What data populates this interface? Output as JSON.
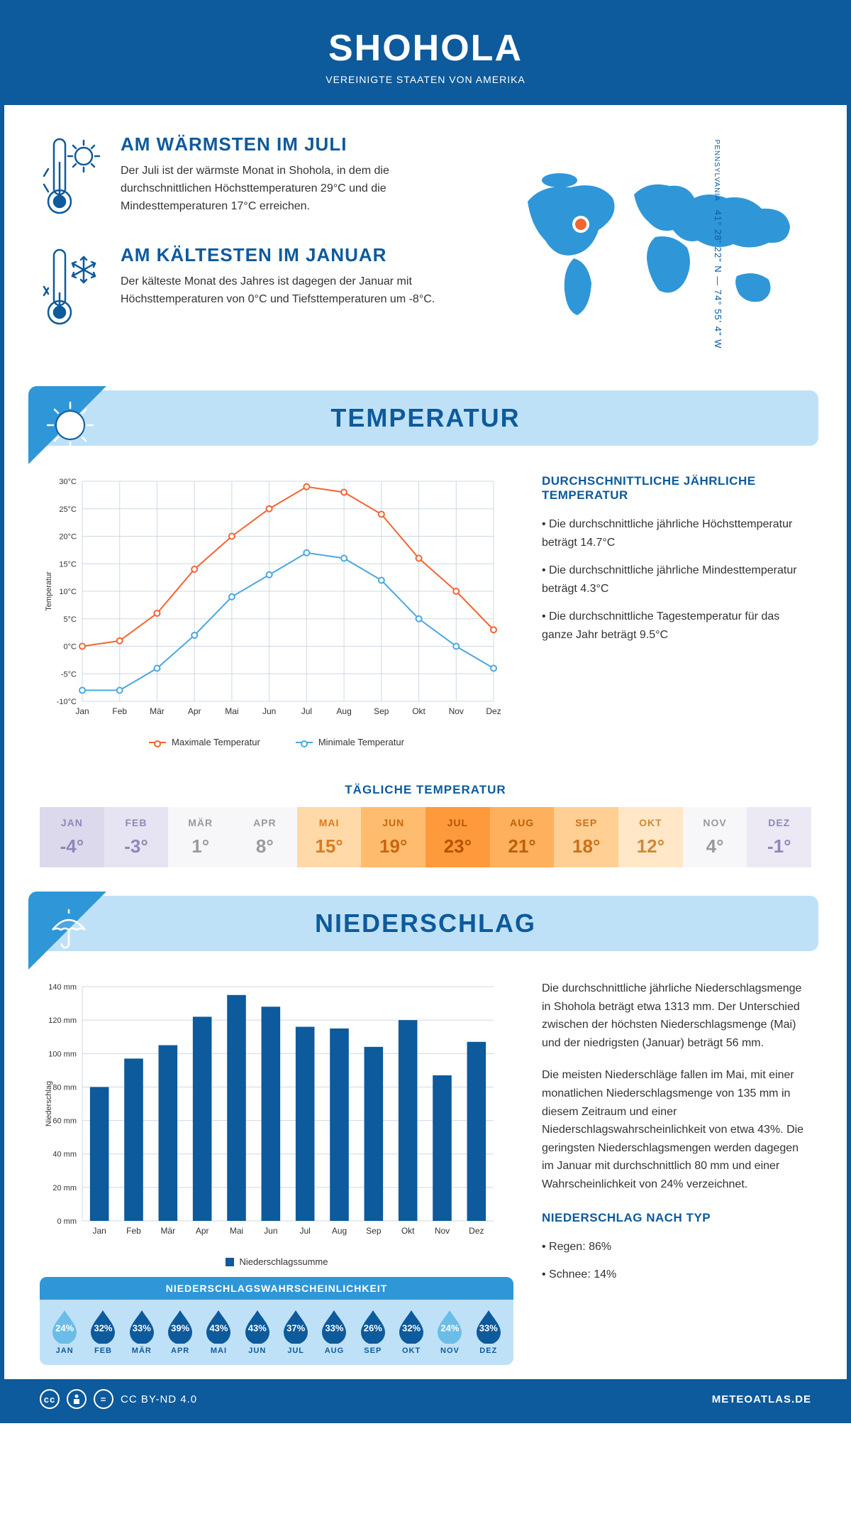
{
  "header": {
    "title": "SHOHOLA",
    "subtitle": "VEREINIGTE STAATEN VON AMERIKA"
  },
  "facts": {
    "warm": {
      "title": "AM WÄRMSTEN IM JULI",
      "text": "Der Juli ist der wärmste Monat in Shohola, in dem die durchschnittlichen Höchsttemperaturen 29°C und die Mindesttemperaturen 17°C erreichen."
    },
    "cold": {
      "title": "AM KÄLTESTEN IM JANUAR",
      "text": "Der kälteste Monat des Jahres ist dagegen der Januar mit Höchsttemperaturen von 0°C und Tiefsttemperaturen um -8°C."
    }
  },
  "coords": "41° 28' 22\" N — 74° 55' 4\" W",
  "region": "PENNSYLVANIA",
  "months": [
    "Jan",
    "Feb",
    "Mär",
    "Apr",
    "Mai",
    "Jun",
    "Jul",
    "Aug",
    "Sep",
    "Okt",
    "Nov",
    "Dez"
  ],
  "months_upper": [
    "JAN",
    "FEB",
    "MÄR",
    "APR",
    "MAI",
    "JUN",
    "JUL",
    "AUG",
    "SEP",
    "OKT",
    "NOV",
    "DEZ"
  ],
  "temperature": {
    "section_title": "TEMPERATUR",
    "chart": {
      "type": "line",
      "ylabel": "Temperatur",
      "ylim": [
        -10,
        30
      ],
      "ytick_step": 5,
      "y_unit": "°C",
      "grid_color": "#cfd8e6",
      "background": "#ffffff",
      "series": [
        {
          "name": "Maximale Temperatur",
          "color": "#f26531",
          "values": [
            0,
            1,
            6,
            14,
            20,
            25,
            29,
            28,
            24,
            16,
            10,
            3
          ]
        },
        {
          "name": "Minimale Temperatur",
          "color": "#4aa8e0",
          "values": [
            -8,
            -8,
            -4,
            2,
            9,
            13,
            17,
            16,
            12,
            5,
            0,
            -4
          ]
        }
      ],
      "marker": "circle",
      "line_width": 2,
      "marker_size": 4
    },
    "side": {
      "title": "DURCHSCHNITTLICHE JÄHRLICHE TEMPERATUR",
      "bullets": [
        "• Die durchschnittliche jährliche Höchsttemperatur beträgt 14.7°C",
        "• Die durchschnittliche jährliche Mindesttemperatur beträgt 4.3°C",
        "• Die durchschnittliche Tagestemperatur für das ganze Jahr beträgt 9.5°C"
      ]
    },
    "daily_title": "TÄGLICHE TEMPERATUR",
    "daily": {
      "values": [
        "-4°",
        "-3°",
        "1°",
        "8°",
        "15°",
        "19°",
        "23°",
        "21°",
        "18°",
        "12°",
        "4°",
        "-1°"
      ],
      "bg": [
        "#dcd9ec",
        "#e6e4f2",
        "#f7f7fa",
        "#f7f7fa",
        "#ffd9a8",
        "#ffbc6e",
        "#ff9a3c",
        "#ffb05c",
        "#ffcf94",
        "#ffe7c7",
        "#f7f7fa",
        "#ece9f5"
      ],
      "fg": [
        "#8e88b8",
        "#8e88b8",
        "#9a9a9a",
        "#9a9a9a",
        "#d97a1f",
        "#c9660e",
        "#b85200",
        "#c05e08",
        "#cb7019",
        "#d18835",
        "#9a9a9a",
        "#8e88b8"
      ]
    }
  },
  "precip": {
    "section_title": "NIEDERSCHLAG",
    "chart": {
      "type": "bar",
      "ylabel": "Niederschlag",
      "ylim": [
        0,
        140
      ],
      "ytick_step": 20,
      "y_unit": " mm",
      "bar_color": "#0d5a9c",
      "grid_color": "#cfd8e6",
      "values": [
        80,
        97,
        105,
        122,
        135,
        128,
        116,
        115,
        104,
        120,
        87,
        107
      ],
      "legend": "Niederschlagssumme",
      "bar_width": 0.55
    },
    "side_text1": "Die durchschnittliche jährliche Niederschlagsmenge in Shohola beträgt etwa 1313 mm. Der Unterschied zwischen der höchsten Niederschlagsmenge (Mai) und der niedrigsten (Januar) beträgt 56 mm.",
    "side_text2": "Die meisten Niederschläge fallen im Mai, mit einer monatlichen Niederschlagsmenge von 135 mm in diesem Zeitraum und einer Niederschlagswahrscheinlichkeit von etwa 43%. Die geringsten Niederschlagsmengen werden dagegen im Januar mit durchschnittlich 80 mm und einer Wahrscheinlichkeit von 24% verzeichnet.",
    "type_title": "NIEDERSCHLAG NACH TYP",
    "type_bullets": [
      "• Regen: 86%",
      "• Schnee: 14%"
    ],
    "prob": {
      "title": "NIEDERSCHLAGSWAHRSCHEINLICHKEIT",
      "values": [
        24,
        32,
        33,
        39,
        43,
        43,
        37,
        33,
        26,
        32,
        24,
        33
      ],
      "drop_colors": [
        "#6bbde8",
        "#0d5a9c",
        "#0d5a9c",
        "#0d5a9c",
        "#0d5a9c",
        "#0d5a9c",
        "#0d5a9c",
        "#0d5a9c",
        "#0d5a9c",
        "#0d5a9c",
        "#6bbde8",
        "#0d5a9c"
      ]
    }
  },
  "footer": {
    "license": "CC BY-ND 4.0",
    "site": "METEOATLAS.DE"
  }
}
